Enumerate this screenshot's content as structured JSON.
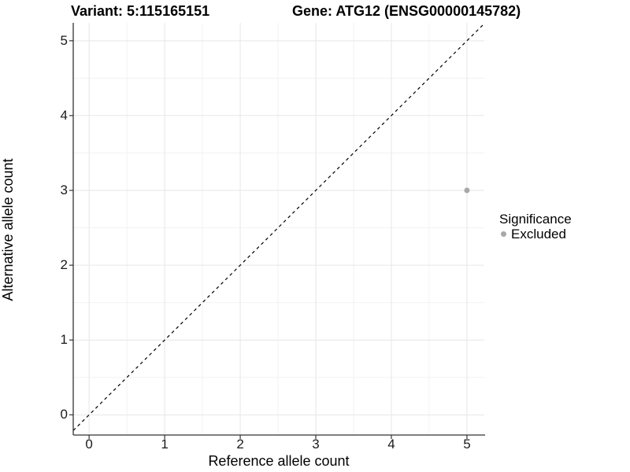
{
  "chart_data": {
    "type": "scatter",
    "titles": {
      "left": "Variant: 5:115165151",
      "right": "Gene: ATG12 (ENSG00000145782)"
    },
    "xlabel": "Reference allele count",
    "ylabel": "Alternative allele count",
    "xlim": [
      -0.21,
      5.23
    ],
    "ylim": [
      -0.27,
      5.24
    ],
    "xticks": [
      0,
      1,
      2,
      3,
      4,
      5
    ],
    "yticks": [
      0,
      1,
      2,
      3,
      4,
      5
    ],
    "grid": "major and minor on, white panel background",
    "points": [
      {
        "x": 5,
        "y": 3,
        "series": "Excluded"
      }
    ],
    "identity_line": {
      "slope": 1,
      "intercept": 0,
      "style": "dashed"
    },
    "legend": {
      "title": "Significance",
      "position": "right",
      "entries": [
        {
          "label": "Excluded",
          "marker": "circle",
          "color": "#a8a8a8"
        }
      ]
    },
    "colors": {
      "point": "#a8a8a8",
      "axis_line": "#333333",
      "tick_mark": "#333333",
      "grid_major": "#e6e6e6",
      "grid_minor": "#f2f2f2",
      "identity_line": "#000000",
      "text": "#000000"
    }
  }
}
